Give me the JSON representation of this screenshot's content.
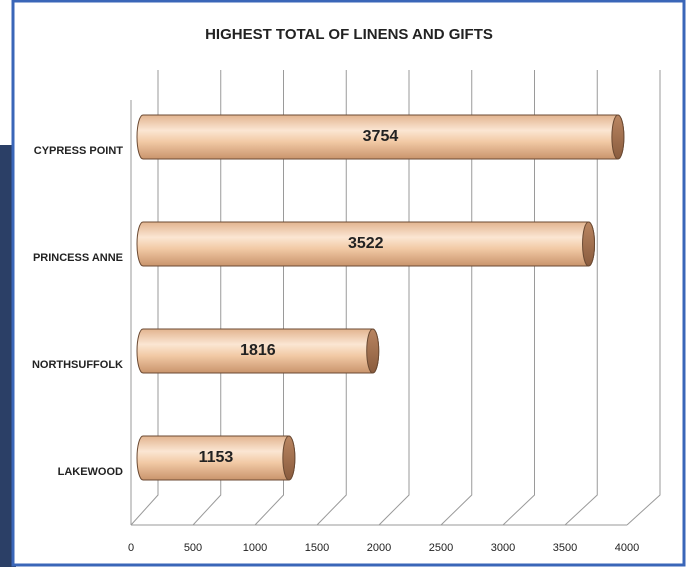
{
  "chart_data": {
    "type": "bar",
    "orientation": "horizontal",
    "title": "HIGHEST TOTAL OF LINENS AND GIFTS",
    "categories": [
      "CYPRESS POINT",
      "PRINCESS ANNE",
      "NORTHSUFFOLK",
      "LAKEWOOD"
    ],
    "values": [
      3754,
      3522,
      1816,
      1153
    ],
    "color": "#f2caa6",
    "xlim": [
      0,
      4000
    ],
    "xticks": [
      0,
      500,
      1000,
      1500,
      2000,
      2500,
      3000,
      3500,
      4000
    ],
    "grid": true
  }
}
